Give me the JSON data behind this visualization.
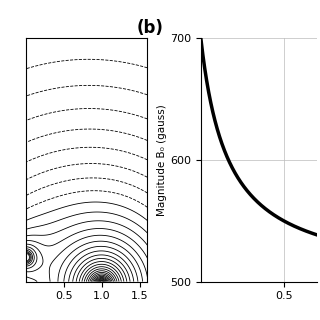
{
  "title_b": "(b)",
  "ylabel_b": "Magnitude B₀ (gauss)",
  "ylim_b": [
    500,
    700
  ],
  "xlim_b": [
    0,
    0.7
  ],
  "yticks_b": [
    500,
    600,
    700
  ],
  "xticks_b": [
    0.5
  ],
  "contour_levels": 35,
  "xlim_a": [
    0.0,
    1.6
  ],
  "ylim_a": [
    0.0,
    3.0
  ],
  "xticks_a": [
    0.5,
    1.0,
    1.5
  ],
  "background_color": "#ffffff",
  "line_color": "#000000",
  "contour_color": "#000000",
  "source1": [
    1.0,
    -0.05
  ],
  "source2": [
    0.0,
    0.3
  ]
}
